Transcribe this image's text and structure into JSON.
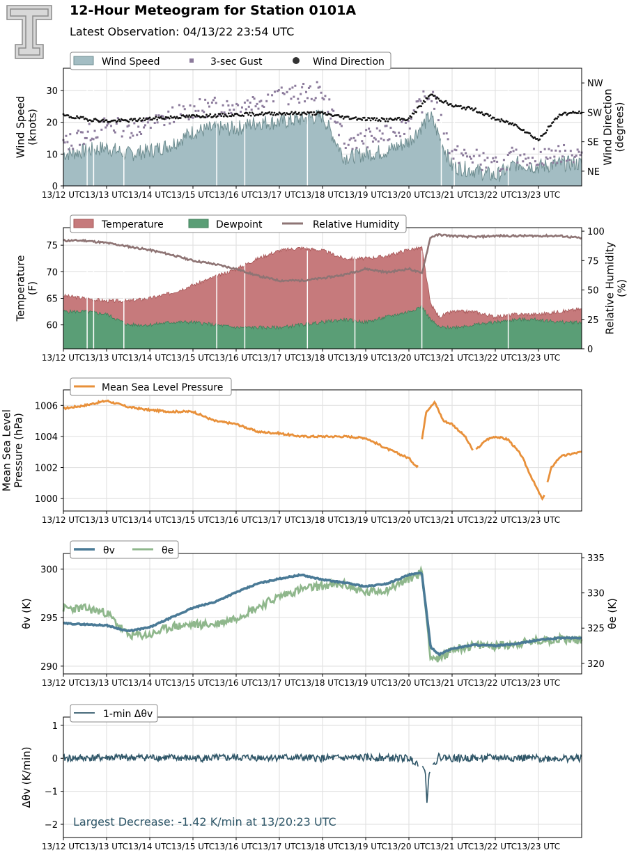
{
  "title": "12-Hour Meteogram for Station 0101A",
  "subtitle": "Latest Observation: 04/13/22 23:54 UTC",
  "logo_icon": "double-t-logo-icon",
  "x_ticks": [
    "13/12 UTC",
    "13/13 UTC",
    "13/14 UTC",
    "13/15 UTC",
    "13/16 UTC",
    "13/17 UTC",
    "13/18 UTC",
    "13/19 UTC",
    "13/20 UTC",
    "13/21 UTC",
    "13/22 UTC",
    "13/23 UTC"
  ],
  "chart_data": [
    {
      "type": "area",
      "panel": "wind",
      "ylabel": "Wind Speed\n(knots)",
      "ylabel_lines": [
        "Wind Speed",
        "(knots)"
      ],
      "ylim": [
        0,
        37
      ],
      "yticks": [
        "0",
        "10",
        "20",
        "30"
      ],
      "y2label_lines": [
        "Wind Direction",
        "(degrees)"
      ],
      "y2lim": [
        0,
        360
      ],
      "y2ticks": [
        {
          "label": "NE",
          "value": 45
        },
        {
          "label": "SE",
          "value": 135
        },
        {
          "label": "SW",
          "value": 225
        },
        {
          "label": "NW",
          "value": 315
        }
      ],
      "legend": [
        "Wind Speed",
        "3-sec Gust",
        "Wind Direction"
      ],
      "colors": {
        "speed_fill": "#a3bdc3",
        "speed_line": "#6e8d90",
        "gust": "#8c7b9c",
        "direction": "#111111"
      },
      "x": [
        12.0,
        12.5,
        13.0,
        13.5,
        14.0,
        14.5,
        15.0,
        15.5,
        16.0,
        16.5,
        17.0,
        17.5,
        18.0,
        18.5,
        19.0,
        19.5,
        20.0,
        20.5,
        21.0,
        21.5,
        22.0,
        22.5,
        23.0,
        23.5,
        24.0
      ],
      "series": [
        {
          "name": "Wind Speed",
          "values": [
            10,
            11,
            12,
            10,
            11,
            13,
            17,
            18,
            18,
            20,
            20,
            21,
            22,
            9,
            10,
            11,
            14,
            22,
            6,
            5,
            3,
            7,
            6,
            7,
            7
          ]
        },
        {
          "name": "3-sec Gust",
          "values": [
            13,
            16,
            19,
            18,
            19,
            22,
            24,
            25,
            25,
            27,
            28,
            29,
            30,
            14,
            15,
            16,
            20,
            30,
            10,
            9,
            6,
            10,
            9,
            10,
            10
          ]
        },
        {
          "name": "Wind Direction",
          "values": [
            215,
            205,
            198,
            200,
            205,
            210,
            213,
            215,
            218,
            220,
            222,
            222,
            222,
            210,
            205,
            202,
            205,
            280,
            245,
            235,
            205,
            185,
            140,
            220,
            225
          ]
        }
      ]
    },
    {
      "type": "area",
      "panel": "temperature",
      "ylabel_lines": [
        "Temperature",
        "(F)"
      ],
      "ylim": [
        55.5,
        78.3
      ],
      "yticks": [
        "60",
        "65",
        "70",
        "75"
      ],
      "y2label_lines": [
        "Relative Humidity",
        "(%)"
      ],
      "y2lim": [
        0,
        103
      ],
      "y2ticks": [
        "0",
        "25",
        "50",
        "75",
        "100"
      ],
      "legend": [
        "Temperature",
        "Dewpoint",
        "Relative Humidity"
      ],
      "colors": {
        "temp": "#c67a7c",
        "dew": "#5a9e76",
        "rh": "#8e7474"
      },
      "x": [
        12.0,
        12.5,
        13.0,
        13.5,
        14.0,
        14.5,
        15.0,
        15.5,
        16.0,
        16.5,
        17.0,
        17.5,
        18.0,
        18.5,
        19.0,
        19.5,
        20.0,
        20.3,
        20.5,
        20.7,
        21.0,
        21.5,
        22.0,
        22.5,
        23.0,
        23.5,
        24.0
      ],
      "series": [
        {
          "name": "Temperature",
          "values": [
            65.5,
            65,
            64.5,
            64.5,
            65,
            66,
            67.5,
            69,
            70.5,
            72.5,
            74,
            74.5,
            74,
            72.5,
            72.5,
            73,
            74.2,
            74.5,
            64,
            61.5,
            62.5,
            62.5,
            61.5,
            62,
            62,
            62.5,
            63
          ]
        },
        {
          "name": "Dewpoint",
          "values": [
            62.5,
            62.5,
            62,
            60,
            60,
            60.5,
            60.5,
            60,
            59.5,
            59.5,
            59.5,
            60,
            60.5,
            61,
            60.5,
            61.5,
            62.5,
            63.5,
            61,
            59.5,
            59.5,
            60,
            60.5,
            61,
            61,
            60.5,
            60.5
          ]
        },
        {
          "name": "Relative Humidity",
          "values": [
            92,
            92,
            90,
            87,
            84,
            80,
            75,
            72,
            68,
            62,
            58,
            58,
            60,
            63,
            68,
            65,
            68,
            64,
            95,
            97,
            96,
            95,
            96,
            96,
            96,
            96,
            94
          ]
        }
      ]
    },
    {
      "type": "line",
      "panel": "pressure",
      "ylabel_lines": [
        "Mean Sea Level",
        "Pressure (hPa)"
      ],
      "ylim": [
        999.2,
        1007.0
      ],
      "yticks": [
        "1000",
        "1002",
        "1004",
        "1006"
      ],
      "legend": [
        "Mean Sea Level Pressure"
      ],
      "colors": {
        "mslp": "#e8903a"
      },
      "x": [
        12.0,
        12.5,
        13.0,
        13.5,
        14.0,
        14.5,
        15.0,
        15.5,
        16.0,
        16.5,
        17.0,
        17.5,
        18.0,
        18.5,
        19.0,
        19.5,
        20.0,
        20.2,
        20.4,
        20.6,
        20.8,
        21.0,
        21.3,
        21.5,
        21.8,
        22.0,
        22.3,
        22.6,
        22.9,
        23.1,
        23.3,
        23.5,
        23.8,
        24.0
      ],
      "series": [
        {
          "name": "Mean Sea Level Pressure",
          "values": [
            1005.8,
            1006.0,
            1006.3,
            1005.9,
            1005.7,
            1005.6,
            1005.6,
            1005.0,
            1004.8,
            1004.3,
            1004.2,
            1004.0,
            1004.0,
            1004.0,
            1003.9,
            1003.2,
            1002.6,
            1002.0,
            1005.6,
            1006.2,
            1005.0,
            1004.8,
            1004.0,
            1003.0,
            1003.8,
            1004.0,
            1003.8,
            1002.8,
            1001.0,
            999.9,
            1002.0,
            1002.7,
            1002.9,
            1003.0
          ]
        }
      ]
    },
    {
      "type": "line",
      "panel": "theta",
      "ylabel": "θv (K)",
      "ylim": [
        289.2,
        301.6
      ],
      "yticks": [
        "290",
        "295",
        "300"
      ],
      "y2label": "θe (K)",
      "y2lim": [
        318.5,
        335.6
      ],
      "y2ticks": [
        "320",
        "325",
        "330",
        "335"
      ],
      "legend": [
        "θv",
        "θe"
      ],
      "colors": {
        "theta_v": "#4a7a96",
        "theta_e": "#8fb78c"
      },
      "x": [
        12.0,
        12.5,
        13.0,
        13.5,
        14.0,
        14.5,
        15.0,
        15.5,
        16.0,
        16.5,
        17.0,
        17.5,
        18.0,
        18.5,
        19.0,
        19.5,
        20.0,
        20.3,
        20.5,
        20.7,
        21.0,
        21.5,
        22.0,
        22.5,
        23.0,
        23.5,
        24.0
      ],
      "series": [
        {
          "name": "θv",
          "values": [
            294.4,
            294.3,
            294.2,
            293.6,
            294.0,
            295.0,
            296.0,
            296.6,
            297.6,
            298.5,
            299.0,
            299.4,
            298.9,
            298.6,
            298.2,
            298.5,
            299.4,
            299.6,
            292.0,
            291.2,
            291.8,
            292.2,
            292.1,
            292.3,
            292.7,
            292.9,
            292.9
          ]
        },
        {
          "name": "θe",
          "values": [
            327.8,
            327.8,
            327.2,
            324.0,
            324.0,
            325.2,
            325.5,
            325.5,
            326.5,
            328.0,
            329.5,
            330.5,
            331.0,
            331.2,
            330.0,
            330.5,
            332.0,
            333.0,
            321.0,
            320.5,
            322.0,
            322.5,
            322.5,
            322.8,
            323.2,
            323.5,
            323.3
          ]
        }
      ]
    },
    {
      "type": "line",
      "panel": "delta",
      "ylabel": "Δθv (K/min)",
      "ylim": [
        -2.4,
        1.25
      ],
      "yticks": [
        "1",
        "0",
        "−1",
        "−2"
      ],
      "legend": [
        "1-min Δθv"
      ],
      "colors": {
        "delta": "#2f5668"
      },
      "annotation": "Largest Decrease: -1.42 K/min at 13/20:23 UTC",
      "x": [
        12.0,
        13.0,
        14.0,
        15.0,
        16.0,
        17.0,
        18.0,
        19.0,
        20.0,
        20.3,
        20.38,
        20.42,
        20.46,
        20.55,
        20.7,
        21.0,
        22.0,
        23.0,
        24.0
      ],
      "series": [
        {
          "name": "1-min Δθv",
          "values": [
            0.0,
            0.02,
            0.03,
            0.0,
            0.02,
            0.03,
            0.0,
            0.02,
            0.0,
            -0.2,
            -0.4,
            -1.42,
            -0.5,
            -0.2,
            0.05,
            0.0,
            0.02,
            0.0,
            0.0
          ]
        }
      ]
    }
  ]
}
